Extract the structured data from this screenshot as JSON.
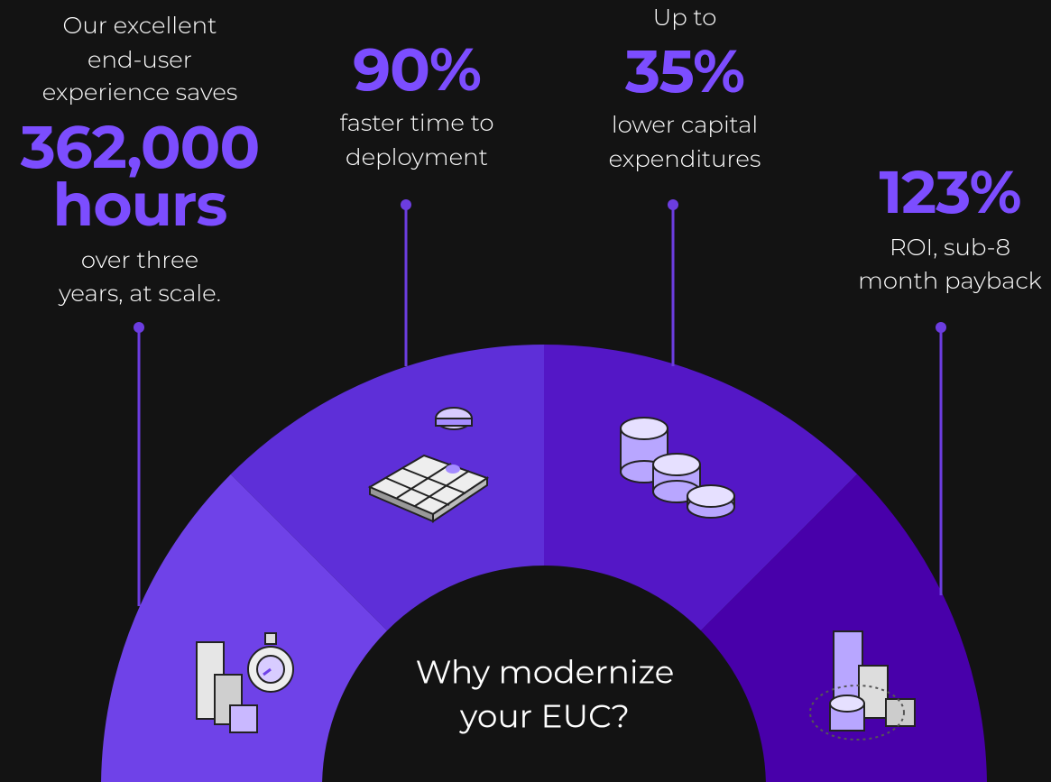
{
  "stats": [
    {
      "lead": [
        "Our excellent",
        "end-user",
        "experience saves"
      ],
      "value": [
        "362,000",
        "hours"
      ],
      "detail": [
        "over three",
        "years, at scale."
      ]
    },
    {
      "lead": [],
      "value": [
        "90%"
      ],
      "detail": [
        "faster time to",
        "deployment"
      ]
    },
    {
      "lead": [
        "Up to"
      ],
      "value": [
        "35%"
      ],
      "detail": [
        "lower capital",
        "expenditures"
      ]
    },
    {
      "lead": [],
      "value": [
        "123%"
      ],
      "detail": [
        "ROI, sub-8",
        "month payback"
      ]
    }
  ],
  "center": [
    "Why modernize",
    "your EUC?"
  ]
}
